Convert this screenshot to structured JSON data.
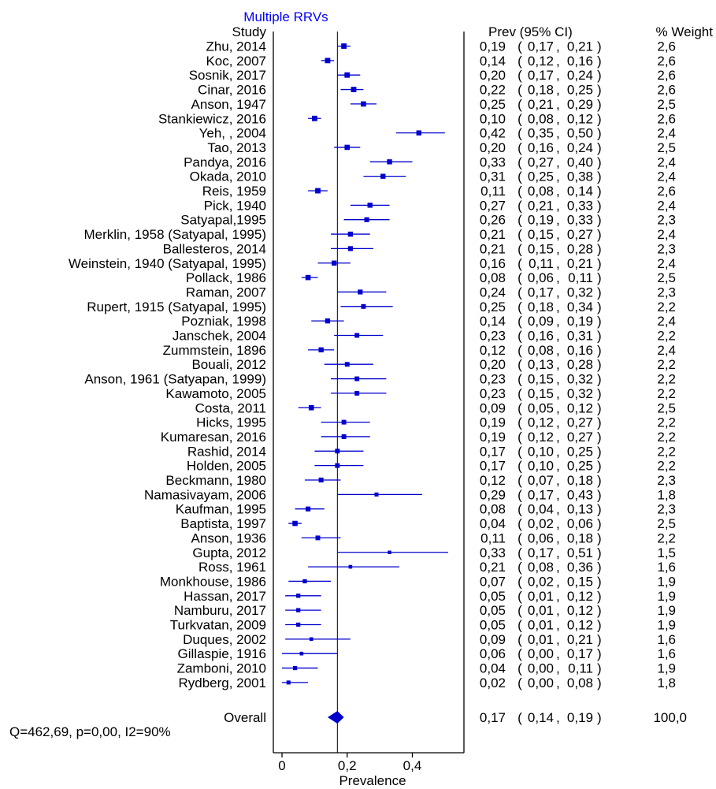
{
  "chart_data": {
    "type": "forest",
    "title": "Multiple RRVs",
    "title_color": "#0000ff",
    "mark_color": "#0000cc",
    "xlabel": "Prevalence",
    "xlim": [
      -0.02,
      0.52
    ],
    "xticks": [
      "0",
      "0,2",
      "0,4"
    ],
    "xtick_values": [
      0,
      0.2,
      0.4
    ],
    "headers": {
      "study": "Study",
      "ci": "Prev (95% CI)",
      "weight": "% Weight"
    },
    "studies": [
      {
        "study": "Zhu, 2014",
        "prev": 0.19,
        "lo": 0.17,
        "hi": 0.21,
        "prev_label": "0,19",
        "lo_label": "0,17",
        "hi_label": "0,21",
        "weight": "2,6"
      },
      {
        "study": "Koc, 2007",
        "prev": 0.14,
        "lo": 0.12,
        "hi": 0.16,
        "prev_label": "0,14",
        "lo_label": "0,12",
        "hi_label": "0,16",
        "weight": "2,6"
      },
      {
        "study": "Sosnik, 2017",
        "prev": 0.2,
        "lo": 0.17,
        "hi": 0.24,
        "prev_label": "0,20",
        "lo_label": "0,17",
        "hi_label": "0,24",
        "weight": "2,6"
      },
      {
        "study": "Cinar, 2016",
        "prev": 0.22,
        "lo": 0.18,
        "hi": 0.25,
        "prev_label": "0,22",
        "lo_label": "0,18",
        "hi_label": "0,25",
        "weight": "2,6"
      },
      {
        "study": "Anson, 1947",
        "prev": 0.25,
        "lo": 0.21,
        "hi": 0.29,
        "prev_label": "0,25",
        "lo_label": "0,21",
        "hi_label": "0,29",
        "weight": "2,5"
      },
      {
        "study": "Stankiewicz, 2016",
        "prev": 0.1,
        "lo": 0.08,
        "hi": 0.12,
        "prev_label": "0,10",
        "lo_label": "0,08",
        "hi_label": "0,12",
        "weight": "2,6"
      },
      {
        "study": "Yeh, , 2004",
        "prev": 0.42,
        "lo": 0.35,
        "hi": 0.5,
        "prev_label": "0,42",
        "lo_label": "0,35",
        "hi_label": "0,50",
        "weight": "2,4"
      },
      {
        "study": "Tao, 2013",
        "prev": 0.2,
        "lo": 0.16,
        "hi": 0.24,
        "prev_label": "0,20",
        "lo_label": "0,16",
        "hi_label": "0,24",
        "weight": "2,5"
      },
      {
        "study": "Pandya, 2016",
        "prev": 0.33,
        "lo": 0.27,
        "hi": 0.4,
        "prev_label": "0,33",
        "lo_label": "0,27",
        "hi_label": "0,40",
        "weight": "2,4"
      },
      {
        "study": "Okada, 2010",
        "prev": 0.31,
        "lo": 0.25,
        "hi": 0.38,
        "prev_label": "0,31",
        "lo_label": "0,25",
        "hi_label": "0,38",
        "weight": "2,4"
      },
      {
        "study": "Reis, 1959",
        "prev": 0.11,
        "lo": 0.08,
        "hi": 0.14,
        "prev_label": "0,11",
        "lo_label": "0,08",
        "hi_label": "0,14",
        "weight": "2,6"
      },
      {
        "study": "Pick, 1940",
        "prev": 0.27,
        "lo": 0.21,
        "hi": 0.33,
        "prev_label": "0,27",
        "lo_label": "0,21",
        "hi_label": "0,33",
        "weight": "2,4"
      },
      {
        "study": "Satyapal,1995",
        "prev": 0.26,
        "lo": 0.19,
        "hi": 0.33,
        "prev_label": "0,26",
        "lo_label": "0,19",
        "hi_label": "0,33",
        "weight": "2,3"
      },
      {
        "study": "Merklin, 1958 (Satyapal, 1995)",
        "prev": 0.21,
        "lo": 0.15,
        "hi": 0.27,
        "prev_label": "0,21",
        "lo_label": "0,15",
        "hi_label": "0,27",
        "weight": "2,4"
      },
      {
        "study": "Ballesteros, 2014",
        "prev": 0.21,
        "lo": 0.15,
        "hi": 0.28,
        "prev_label": "0,21",
        "lo_label": "0,15",
        "hi_label": "0,28",
        "weight": "2,3"
      },
      {
        "study": "Weinstein, 1940 (Satyapal, 1995)",
        "prev": 0.16,
        "lo": 0.11,
        "hi": 0.21,
        "prev_label": "0,16",
        "lo_label": "0,11",
        "hi_label": "0,21",
        "weight": "2,4"
      },
      {
        "study": "Pollack, 1986",
        "prev": 0.08,
        "lo": 0.06,
        "hi": 0.11,
        "prev_label": "0,08",
        "lo_label": "0,06",
        "hi_label": "0,11",
        "weight": "2,5"
      },
      {
        "study": "Raman, 2007",
        "prev": 0.24,
        "lo": 0.17,
        "hi": 0.32,
        "prev_label": "0,24",
        "lo_label": "0,17",
        "hi_label": "0,32",
        "weight": "2,3"
      },
      {
        "study": "Rupert, 1915 (Satyapal, 1995)",
        "prev": 0.25,
        "lo": 0.18,
        "hi": 0.34,
        "prev_label": "0,25",
        "lo_label": "0,18",
        "hi_label": "0,34",
        "weight": "2,2"
      },
      {
        "study": "Pozniak, 1998",
        "prev": 0.14,
        "lo": 0.09,
        "hi": 0.19,
        "prev_label": "0,14",
        "lo_label": "0,09",
        "hi_label": "0,19",
        "weight": "2,4"
      },
      {
        "study": "Janschek, 2004",
        "prev": 0.23,
        "lo": 0.16,
        "hi": 0.31,
        "prev_label": "0,23",
        "lo_label": "0,16",
        "hi_label": "0,31",
        "weight": "2,2"
      },
      {
        "study": "Zummstein, 1896",
        "prev": 0.12,
        "lo": 0.08,
        "hi": 0.16,
        "prev_label": "0,12",
        "lo_label": "0,08",
        "hi_label": "0,16",
        "weight": "2,4"
      },
      {
        "study": "Bouali, 2012",
        "prev": 0.2,
        "lo": 0.13,
        "hi": 0.28,
        "prev_label": "0,20",
        "lo_label": "0,13",
        "hi_label": "0,28",
        "weight": "2,2"
      },
      {
        "study": "Anson, 1961 (Satyapan, 1999)",
        "prev": 0.23,
        "lo": 0.15,
        "hi": 0.32,
        "prev_label": "0,23",
        "lo_label": "0,15",
        "hi_label": "0,32",
        "weight": "2,2"
      },
      {
        "study": "Kawamoto, 2005",
        "prev": 0.23,
        "lo": 0.15,
        "hi": 0.32,
        "prev_label": "0,23",
        "lo_label": "0,15",
        "hi_label": "0,32",
        "weight": "2,2"
      },
      {
        "study": "Costa, 2011",
        "prev": 0.09,
        "lo": 0.05,
        "hi": 0.12,
        "prev_label": "0,09",
        "lo_label": "0,05",
        "hi_label": "0,12",
        "weight": "2,5"
      },
      {
        "study": "Hicks, 1995",
        "prev": 0.19,
        "lo": 0.12,
        "hi": 0.27,
        "prev_label": "0,19",
        "lo_label": "0,12",
        "hi_label": "0,27",
        "weight": "2,2"
      },
      {
        "study": "Kumaresan, 2016",
        "prev": 0.19,
        "lo": 0.12,
        "hi": 0.27,
        "prev_label": "0,19",
        "lo_label": "0,12",
        "hi_label": "0,27",
        "weight": "2,2"
      },
      {
        "study": "Rashid, 2014",
        "prev": 0.17,
        "lo": 0.1,
        "hi": 0.25,
        "prev_label": "0,17",
        "lo_label": "0,10",
        "hi_label": "0,25",
        "weight": "2,2"
      },
      {
        "study": "Holden, 2005",
        "prev": 0.17,
        "lo": 0.1,
        "hi": 0.25,
        "prev_label": "0,17",
        "lo_label": "0,10",
        "hi_label": "0,25",
        "weight": "2,2"
      },
      {
        "study": "Beckmann, 1980",
        "prev": 0.12,
        "lo": 0.07,
        "hi": 0.18,
        "prev_label": "0,12",
        "lo_label": "0,07",
        "hi_label": "0,18",
        "weight": "2,3"
      },
      {
        "study": "Namasivayam, 2006",
        "prev": 0.29,
        "lo": 0.17,
        "hi": 0.43,
        "prev_label": "0,29",
        "lo_label": "0,17",
        "hi_label": "0,43",
        "weight": "1,8"
      },
      {
        "study": "Kaufman, 1995",
        "prev": 0.08,
        "lo": 0.04,
        "hi": 0.13,
        "prev_label": "0,08",
        "lo_label": "0,04",
        "hi_label": "0,13",
        "weight": "2,3"
      },
      {
        "study": "Baptista, 1997",
        "prev": 0.04,
        "lo": 0.02,
        "hi": 0.06,
        "prev_label": "0,04",
        "lo_label": "0,02",
        "hi_label": "0,06",
        "weight": "2,5"
      },
      {
        "study": "Anson, 1936",
        "prev": 0.11,
        "lo": 0.06,
        "hi": 0.18,
        "prev_label": "0,11",
        "lo_label": "0,06",
        "hi_label": "0,18",
        "weight": "2,2"
      },
      {
        "study": "Gupta, 2012",
        "prev": 0.33,
        "lo": 0.17,
        "hi": 0.51,
        "prev_label": "0,33",
        "lo_label": "0,17",
        "hi_label": "0,51",
        "weight": "1,5"
      },
      {
        "study": "Ross, 1961",
        "prev": 0.21,
        "lo": 0.08,
        "hi": 0.36,
        "prev_label": "0,21",
        "lo_label": "0,08",
        "hi_label": "0,36",
        "weight": "1,6"
      },
      {
        "study": "Monkhouse, 1986",
        "prev": 0.07,
        "lo": 0.02,
        "hi": 0.15,
        "prev_label": "0,07",
        "lo_label": "0,02",
        "hi_label": "0,15",
        "weight": "1,9"
      },
      {
        "study": "Hassan, 2017",
        "prev": 0.05,
        "lo": 0.01,
        "hi": 0.12,
        "prev_label": "0,05",
        "lo_label": "0,01",
        "hi_label": "0,12",
        "weight": "1,9"
      },
      {
        "study": "Namburu, 2017",
        "prev": 0.05,
        "lo": 0.01,
        "hi": 0.12,
        "prev_label": "0,05",
        "lo_label": "0,01",
        "hi_label": "0,12",
        "weight": "1,9"
      },
      {
        "study": "Turkvatan, 2009",
        "prev": 0.05,
        "lo": 0.01,
        "hi": 0.12,
        "prev_label": "0,05",
        "lo_label": "0,01",
        "hi_label": "0,12",
        "weight": "1,9"
      },
      {
        "study": "Duques, 2002",
        "prev": 0.09,
        "lo": 0.01,
        "hi": 0.21,
        "prev_label": "0,09",
        "lo_label": "0,01",
        "hi_label": "0,21",
        "weight": "1,6"
      },
      {
        "study": "Gillaspie, 1916",
        "prev": 0.06,
        "lo": 0.0,
        "hi": 0.17,
        "prev_label": "0,06",
        "lo_label": "0,00",
        "hi_label": "0,17",
        "weight": "1,6"
      },
      {
        "study": "Zamboni, 2010",
        "prev": 0.04,
        "lo": 0.0,
        "hi": 0.11,
        "prev_label": "0,04",
        "lo_label": "0,00",
        "hi_label": "0,11",
        "weight": "1,9"
      },
      {
        "study": "Rydberg, 2001",
        "prev": 0.02,
        "lo": 0.0,
        "hi": 0.08,
        "prev_label": "0,02",
        "lo_label": "0,00",
        "hi_label": "0,08",
        "weight": "1,8"
      }
    ],
    "overall": {
      "label": "Overall",
      "prev": 0.17,
      "lo": 0.14,
      "hi": 0.19,
      "prev_label": "0,17",
      "lo_label": "0,14",
      "hi_label": "0,19",
      "weight": "100,0",
      "heterogeneity": "Q=462,69, p=0,00, I2=90%"
    }
  }
}
